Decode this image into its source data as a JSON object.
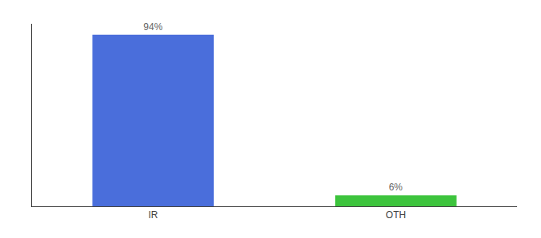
{
  "chart_data": {
    "type": "bar",
    "categories": [
      "IR",
      "OTH"
    ],
    "values": [
      94,
      6
    ],
    "value_labels": [
      "94%",
      "6%"
    ],
    "colors": [
      "#4a6edb",
      "#3dc43d"
    ],
    "ylim": [
      0,
      100
    ],
    "data_labels": true,
    "tick_labels": "x",
    "grid": false
  }
}
